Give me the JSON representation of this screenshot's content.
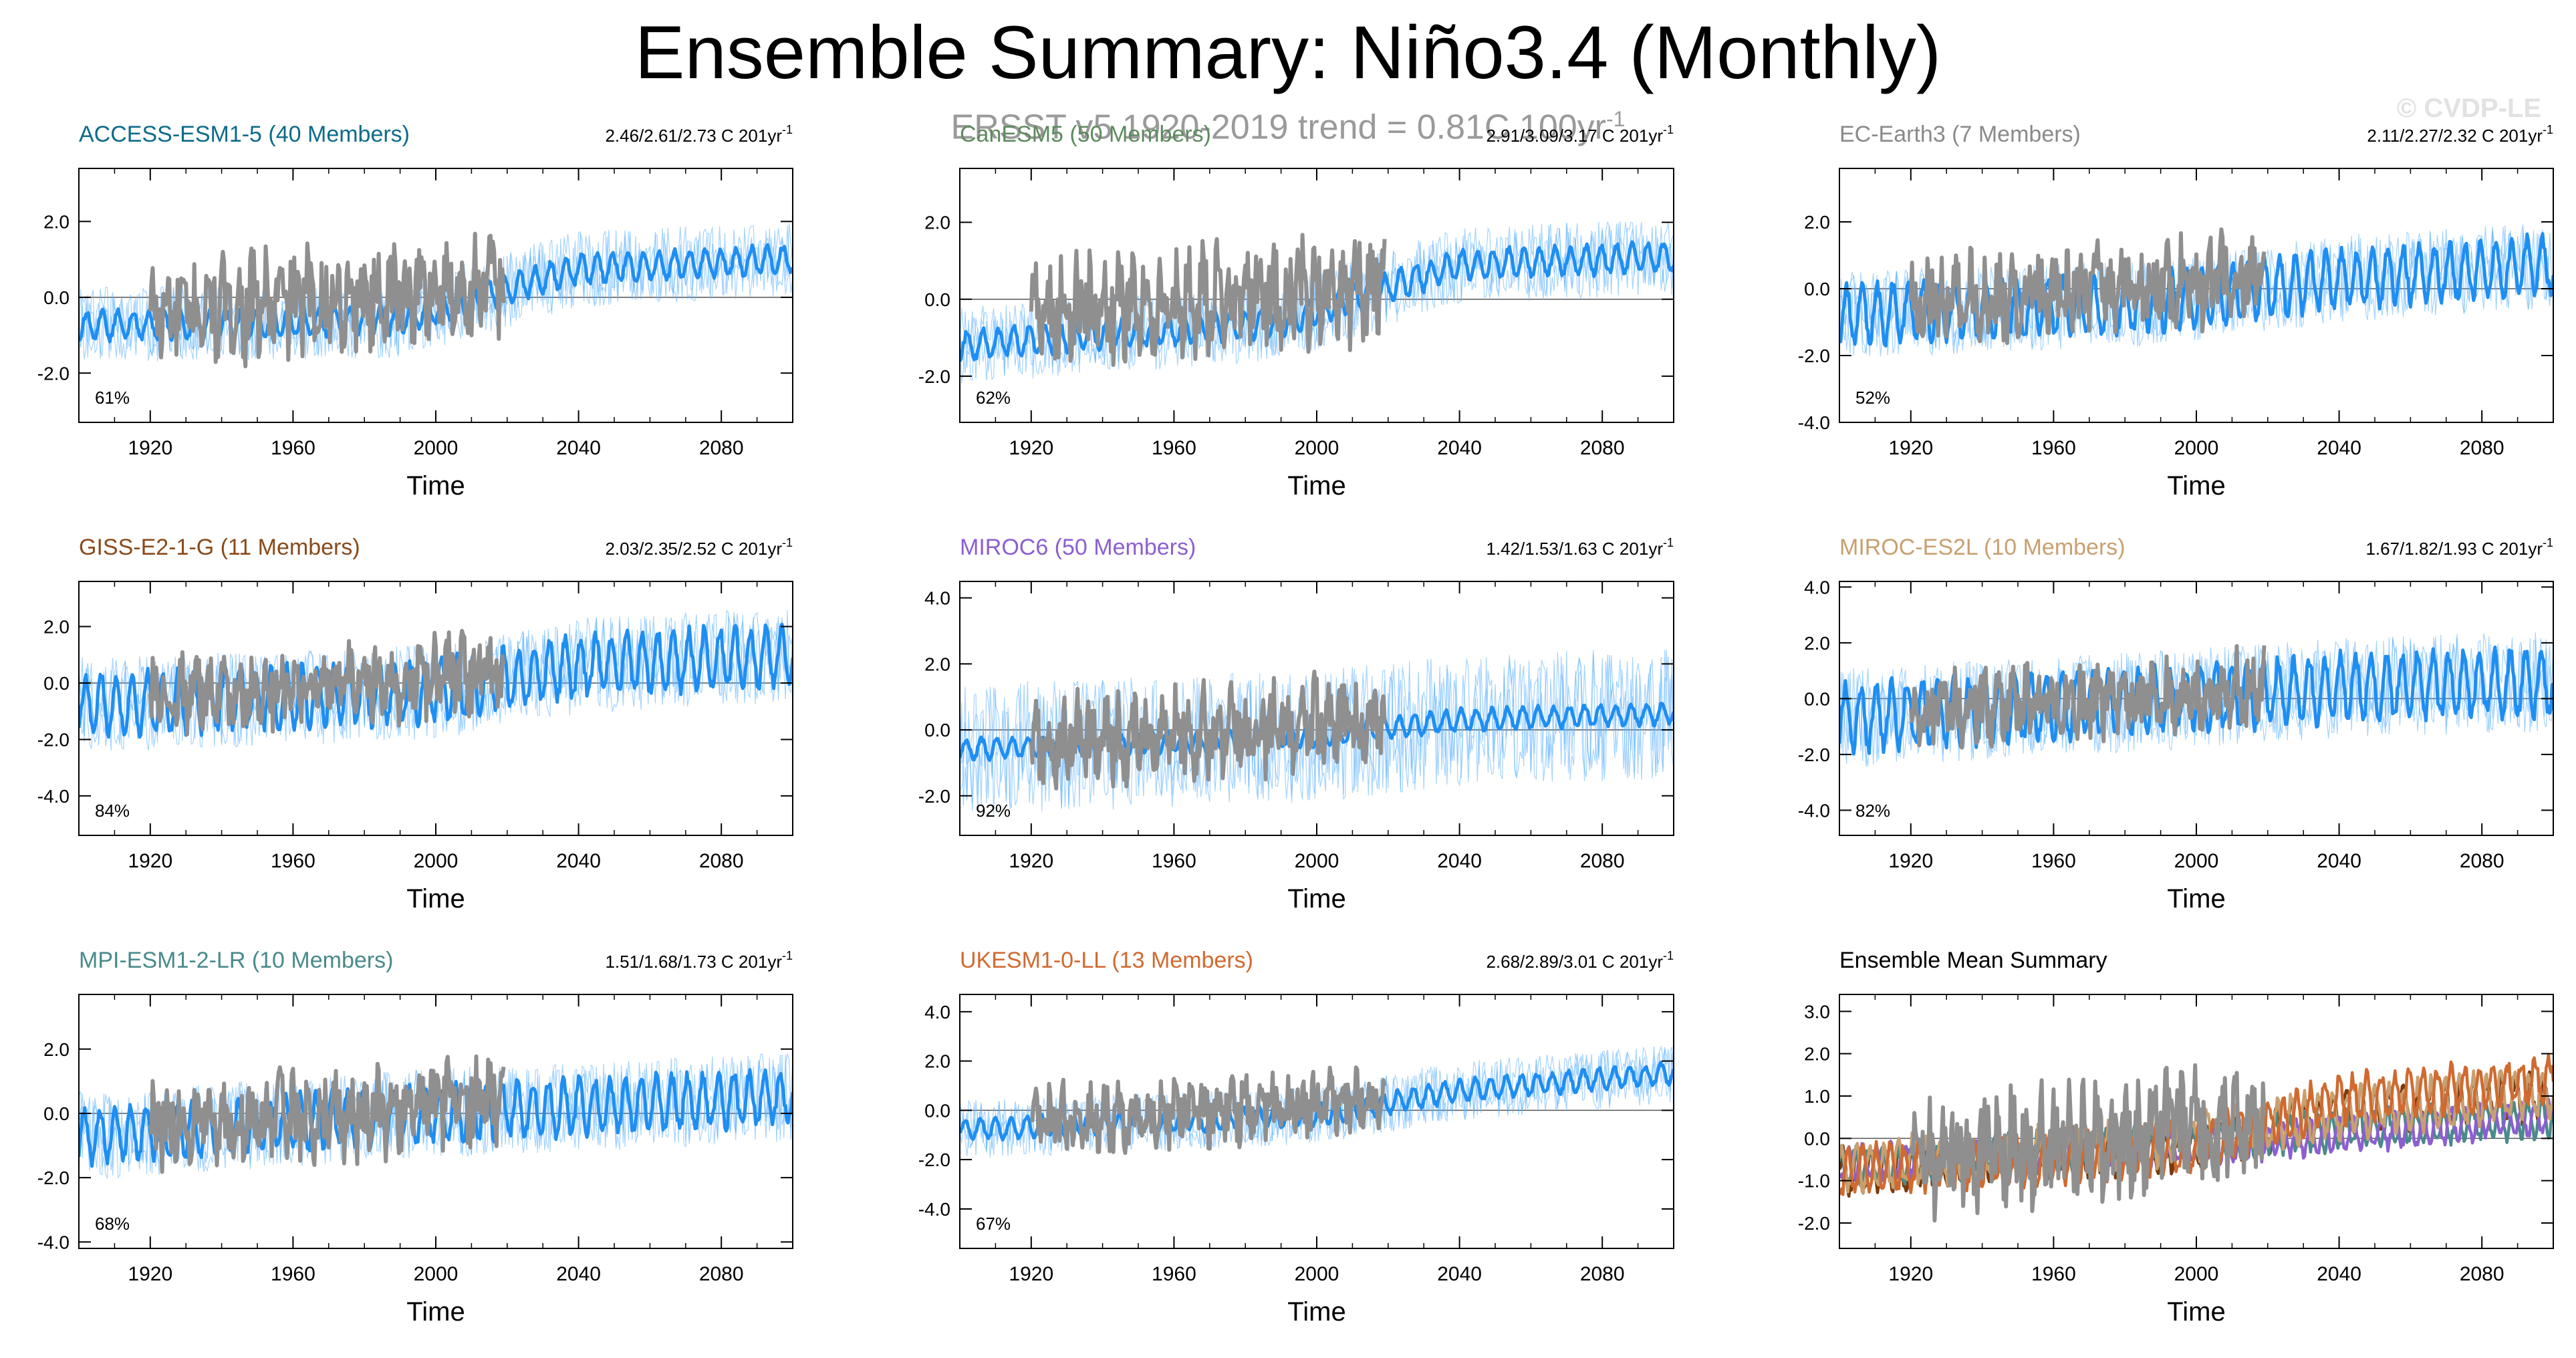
{
  "figure": {
    "title": "Ensemble Summary: Niño3.4 (Monthly)",
    "subtitle": "ERSST v5 1920-2019 trend = 0.81C 100yr",
    "subtitle_sup": "-1",
    "watermark": "© CVDP-LE"
  },
  "colors": {
    "observations": "#8f8f8f",
    "ensemble_mean": "#1f8ef1",
    "ensemble_members": "#5bb0ff",
    "zero_line": "#555555"
  },
  "chart_data": [
    {
      "type": "line",
      "panel_title": "ACCESS-ESM1-5 (40 Members)",
      "title_color": "#0d6b8a",
      "trend_text": "2.46/2.61/2.73 C 201yr",
      "trend_sup": "-1",
      "percent": "61%",
      "xlabel": "Time",
      "xlim": [
        1900,
        2100
      ],
      "xticks": [
        "1920",
        "1960",
        "2000",
        "2040",
        "2080"
      ],
      "ylim": [
        -3.3,
        3.4
      ],
      "yticks": [
        "-2.0",
        "0.0",
        "2.0"
      ],
      "series": [
        {
          "role": "observations",
          "x": [
            1920,
            2019
          ],
          "trend": [
            -0.45,
            0.35
          ],
          "amp": 1.45
        },
        {
          "role": "ensemble",
          "x": [
            1900,
            2100
          ],
          "knots": [
            [
              1900,
              -0.75
            ],
            [
              1990,
              -0.6
            ],
            [
              2040,
              0.75
            ],
            [
              2100,
              1.0
            ]
          ],
          "amp": 0.35,
          "spread": 1.0
        }
      ]
    },
    {
      "type": "line",
      "panel_title": "CanESM5 (50 Members)",
      "title_color": "#5e8a5e",
      "trend_text": "2.91/3.09/3.17 C 201yr",
      "trend_sup": "-1",
      "percent": "62%",
      "xlabel": "Time",
      "xlim": [
        1900,
        2100
      ],
      "xticks": [
        "1920",
        "1960",
        "2000",
        "2040",
        "2080"
      ],
      "ylim": [
        -3.2,
        3.4
      ],
      "yticks": [
        "-2.0",
        "0.0",
        "2.0"
      ],
      "series": [
        {
          "role": "observations",
          "x": [
            1920,
            2019
          ],
          "trend": [
            -0.4,
            0.35
          ],
          "amp": 1.45
        },
        {
          "role": "ensemble",
          "x": [
            1900,
            2100
          ],
          "knots": [
            [
              1900,
              -1.2
            ],
            [
              1990,
              -0.6
            ],
            [
              2040,
              0.9
            ],
            [
              2100,
              1.1
            ]
          ],
          "amp": 0.35,
          "spread": 1.0
        }
      ]
    },
    {
      "type": "line",
      "panel_title": "EC-Earth3 (7 Members)",
      "title_color": "#8a8a8a",
      "trend_text": "2.11/2.27/2.32 C 201yr",
      "trend_sup": "-1",
      "percent": "52%",
      "xlabel": "Time",
      "xlim": [
        1900,
        2100
      ],
      "xticks": [
        "1920",
        "1960",
        "2000",
        "2040",
        "2080"
      ],
      "ylim": [
        -4.0,
        3.6
      ],
      "yticks": [
        "-4.0",
        "-2.0",
        "0.0",
        "2.0"
      ],
      "series": [
        {
          "role": "observations",
          "x": [
            1920,
            2019
          ],
          "trend": [
            -0.45,
            0.35
          ],
          "amp": 1.45
        },
        {
          "role": "ensemble",
          "x": [
            1900,
            2100
          ],
          "knots": [
            [
              1900,
              -0.8
            ],
            [
              1990,
              -0.4
            ],
            [
              2040,
              0.3
            ],
            [
              2100,
              0.7
            ]
          ],
          "amp": 0.8,
          "spread": 1.3
        }
      ]
    },
    {
      "type": "line",
      "panel_title": "GISS-E2-1-G (11 Members)",
      "title_color": "#8a4a1a",
      "trend_text": "2.03/2.35/2.52 C 201yr",
      "trend_sup": "-1",
      "percent": "84%",
      "xlabel": "Time",
      "xlim": [
        1900,
        2100
      ],
      "xticks": [
        "1920",
        "1960",
        "2000",
        "2040",
        "2080"
      ],
      "ylim": [
        -5.4,
        3.6
      ],
      "yticks": [
        "-4.0",
        "-2.0",
        "0.0",
        "2.0"
      ],
      "series": [
        {
          "role": "observations",
          "x": [
            1920,
            2019
          ],
          "trend": [
            -0.45,
            0.35
          ],
          "amp": 1.45
        },
        {
          "role": "ensemble",
          "x": [
            1900,
            2100
          ],
          "knots": [
            [
              1900,
              -0.8
            ],
            [
              2000,
              -0.3
            ],
            [
              2040,
              0.6
            ],
            [
              2100,
              1.0
            ]
          ],
          "amp": 1.0,
          "spread": 1.7
        }
      ]
    },
    {
      "type": "line",
      "panel_title": "MIROC6 (50 Members)",
      "title_color": "#8c5fd0",
      "trend_text": "1.42/1.53/1.63 C 201yr",
      "trend_sup": "-1",
      "percent": "92%",
      "xlabel": "Time",
      "xlim": [
        1900,
        2100
      ],
      "xticks": [
        "1920",
        "1960",
        "2000",
        "2040",
        "2080"
      ],
      "ylim": [
        -3.2,
        4.5
      ],
      "yticks": [
        "-2.0",
        "0.0",
        "2.0",
        "4.0"
      ],
      "series": [
        {
          "role": "observations",
          "x": [
            1920,
            2019
          ],
          "trend": [
            -0.45,
            0.35
          ],
          "amp": 1.45
        },
        {
          "role": "ensemble",
          "x": [
            1900,
            2100
          ],
          "knots": [
            [
              1900,
              -0.6
            ],
            [
              2000,
              -0.2
            ],
            [
              2040,
              0.3
            ],
            [
              2100,
              0.5
            ]
          ],
          "amp": 0.3,
          "spread": 2.0
        }
      ]
    },
    {
      "type": "line",
      "panel_title": "MIROC-ES2L (10 Members)",
      "title_color": "#c8a070",
      "trend_text": "1.67/1.82/1.93 C 201yr",
      "trend_sup": "-1",
      "percent": "82%",
      "xlabel": "Time",
      "xlim": [
        1900,
        2100
      ],
      "xticks": [
        "1920",
        "1960",
        "2000",
        "2040",
        "2080"
      ],
      "ylim": [
        -4.9,
        4.2
      ],
      "yticks": [
        "-4.0",
        "-2.0",
        "0.0",
        "2.0",
        "4.0"
      ],
      "series": [
        {
          "role": "observations",
          "x": [
            1920,
            2019
          ],
          "trend": [
            -0.45,
            0.35
          ],
          "amp": 1.45
        },
        {
          "role": "ensemble",
          "x": [
            1900,
            2100
          ],
          "knots": [
            [
              1900,
              -0.7
            ],
            [
              2000,
              0.0
            ],
            [
              2040,
              0.4
            ],
            [
              2100,
              0.6
            ]
          ],
          "amp": 1.1,
          "spread": 1.8
        }
      ]
    },
    {
      "type": "line",
      "panel_title": "MPI-ESM1-2-LR (10 Members)",
      "title_color": "#4a8a8a",
      "trend_text": "1.51/1.68/1.73 C 201yr",
      "trend_sup": "-1",
      "percent": "68%",
      "xlabel": "Time",
      "xlim": [
        1900,
        2100
      ],
      "xticks": [
        "1920",
        "1960",
        "2000",
        "2040",
        "2080"
      ],
      "ylim": [
        -4.2,
        3.7
      ],
      "yticks": [
        "-4.0",
        "-2.0",
        "0.0",
        "2.0"
      ],
      "series": [
        {
          "role": "observations",
          "x": [
            1920,
            2019
          ],
          "trend": [
            -0.45,
            0.35
          ],
          "amp": 1.45
        },
        {
          "role": "ensemble",
          "x": [
            1900,
            2100
          ],
          "knots": [
            [
              1900,
              -0.7
            ],
            [
              2000,
              0.0
            ],
            [
              2100,
              0.5
            ]
          ],
          "amp": 0.8,
          "spread": 1.4
        }
      ]
    },
    {
      "type": "line",
      "panel_title": "UKESM1-0-LL (13 Members)",
      "title_color": "#d06a30",
      "trend_text": "2.68/2.89/3.01 C 201yr",
      "trend_sup": "-1",
      "percent": "67%",
      "xlabel": "Time",
      "xlim": [
        1900,
        2100
      ],
      "xticks": [
        "1920",
        "1960",
        "2000",
        "2040",
        "2080"
      ],
      "ylim": [
        -5.6,
        4.7
      ],
      "yticks": [
        "-4.0",
        "-2.0",
        "0.0",
        "2.0",
        "4.0"
      ],
      "series": [
        {
          "role": "observations",
          "x": [
            1920,
            2019
          ],
          "trend": [
            -0.45,
            0.35
          ],
          "amp": 1.45
        },
        {
          "role": "ensemble",
          "x": [
            1900,
            2100
          ],
          "knots": [
            [
              1900,
              -0.8
            ],
            [
              2000,
              -0.2
            ],
            [
              2040,
              0.8
            ],
            [
              2100,
              1.5
            ]
          ],
          "amp": 0.4,
          "spread": 1.2
        }
      ]
    },
    {
      "type": "line",
      "panel_title": "Ensemble Mean Summary",
      "title_color": "#000000",
      "trend_text": "",
      "trend_sup": "",
      "percent": "",
      "xlabel": "Time",
      "xlim": [
        1900,
        2100
      ],
      "xticks": [
        "1920",
        "1960",
        "2000",
        "2040",
        "2080"
      ],
      "ylim": [
        -2.6,
        3.4
      ],
      "yticks": [
        "-2.0",
        "-1.0",
        "0.0",
        "1.0",
        "2.0",
        "3.0"
      ],
      "series": [
        {
          "role": "observations",
          "x": [
            1920,
            2019
          ],
          "trend": [
            -0.45,
            0.35
          ],
          "amp": 1.45
        },
        {
          "role": "model-mean",
          "color": "#7a3a0a",
          "knots": [
            [
              1900,
              -0.8
            ],
            [
              2000,
              -0.2
            ],
            [
              2040,
              0.6
            ],
            [
              2100,
              1.0
            ]
          ],
          "amp": 0.45
        },
        {
          "role": "model-mean",
          "color": "#4a8a8a",
          "knots": [
            [
              1900,
              -0.7
            ],
            [
              2000,
              0.0
            ],
            [
              2100,
              0.5
            ]
          ],
          "amp": 0.4
        },
        {
          "role": "model-mean",
          "color": "#8c5fd0",
          "knots": [
            [
              1900,
              -0.6
            ],
            [
              2000,
              -0.2
            ],
            [
              2100,
              0.5
            ]
          ],
          "amp": 0.35
        },
        {
          "role": "model-mean",
          "color": "#c8a070",
          "knots": [
            [
              1900,
              -0.7
            ],
            [
              2000,
              0.0
            ],
            [
              2040,
              0.6
            ],
            [
              2100,
              1.1
            ]
          ],
          "amp": 0.5
        },
        {
          "role": "model-mean",
          "color": "#d06a30",
          "knots": [
            [
              1900,
              -0.8
            ],
            [
              2000,
              -0.2
            ],
            [
              2040,
              0.9
            ],
            [
              2100,
              1.4
            ]
          ],
          "amp": 0.5
        }
      ]
    }
  ]
}
